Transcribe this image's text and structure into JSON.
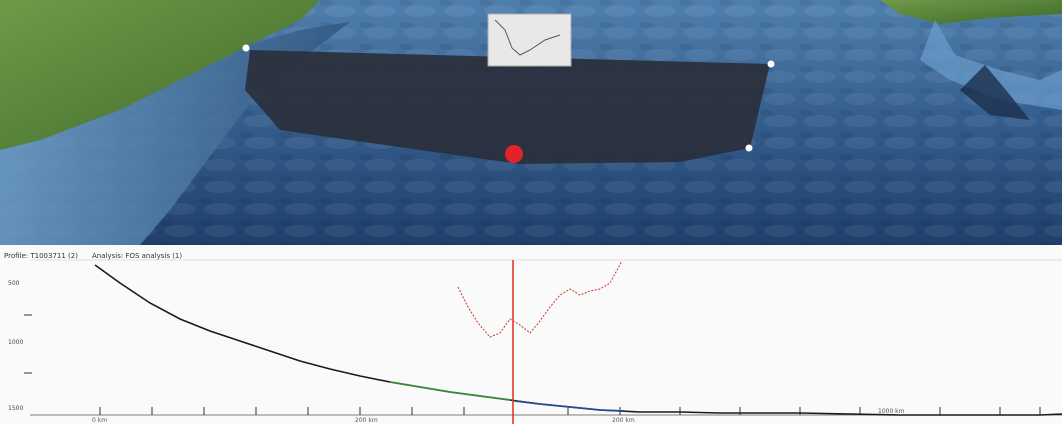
{
  "viewport": {
    "name": "3d-seafloor-view",
    "colors": {
      "water_deep": "#1e3a63",
      "water_shallow": "#5c8fbf",
      "land": "#5a8a3a",
      "sounding_panel": "#2a2e38",
      "marker": "#e0242a"
    }
  },
  "profile": {
    "header": {
      "profile_label": "Profile: T1003711 (2)",
      "analysis_label": "Analysis: FOS analysis (1)"
    },
    "y_ticks": [
      "500",
      "",
      "1000",
      "",
      "1500"
    ],
    "x_labels": [
      "0 km",
      "200 km",
      "200 km",
      "1000 km"
    ],
    "colors": {
      "profile_line": "#1a1a1a",
      "segment_green": "#3a8a3a",
      "segment_blue": "#2a4a9a",
      "analysis_curve": "#c4382e",
      "cursor": "#e03a2a"
    }
  }
}
